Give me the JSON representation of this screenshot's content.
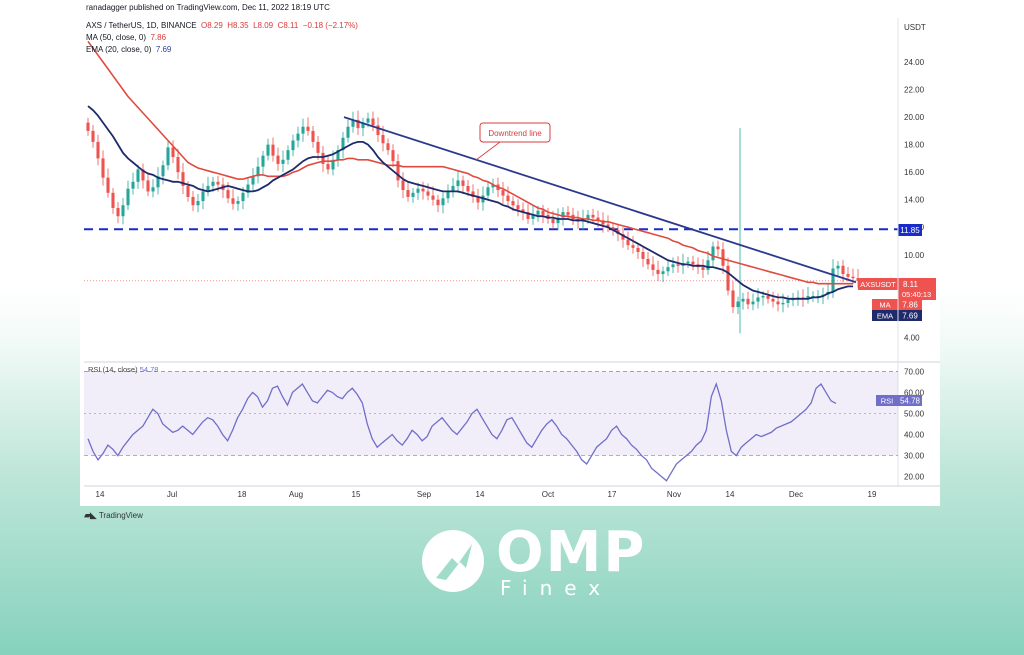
{
  "header": {
    "published_by": "ranadagger published on TradingView.com, Dec 11, 2022 18:19 UTC",
    "symbol": "AXS / TetherUS, 1D, BINANCE",
    "ohlc_o": "O8.29",
    "ohlc_h": "H8.35",
    "ohlc_l": "L8.09",
    "ohlc_c": "C8.11",
    "ohlc_change": "−0.18 (−2.17%)",
    "ma_label": "MA (50, close, 0)",
    "ma_value": "7.86",
    "ema_label": "EMA (20, close, 0)",
    "ema_value": "7.69",
    "rsi_label": "RSI (14, close)",
    "rsi_value": "54.78"
  },
  "annotation": {
    "downtrend_label": "Downtrend line"
  },
  "tags": {
    "support_level": "11.85",
    "symbol_tag": "AXSUSDT",
    "price": "8.11",
    "countdown": "05:40:13",
    "ma_tag": "MA",
    "ma_value": "7.86",
    "ema_tag": "EMA",
    "ema_value": "7.69",
    "rsi_tag": "RSI",
    "rsi_value": "54.78"
  },
  "footer": {
    "tradingview": "TradingView"
  },
  "watermark": {
    "omp": "OMP",
    "finex": "Finex"
  },
  "colors": {
    "up": "#26a69a",
    "down": "#ef5350",
    "ma": "#e04a3f",
    "ema": "#1f2a6b",
    "trend": "#2b3a8c",
    "support": "#1a2cc7",
    "rsi": "#6f6fc9"
  },
  "chart_data": [
    {
      "type": "candlestick",
      "title": "AXS / TetherUS, 1D, BINANCE",
      "y_axis_label": "USDT",
      "y_ticks": [
        "24.00",
        "22.00",
        "20.00",
        "18.00",
        "16.00",
        "14.00",
        "12.00",
        "10.00",
        "8.00",
        "6.00",
        "4.00"
      ],
      "x_ticks": [
        "14",
        "Jul",
        "18",
        "Aug",
        "15",
        "Sep",
        "14",
        "Oct",
        "17",
        "Nov",
        "14",
        "Dec",
        "19"
      ],
      "close": [
        19.0,
        18.2,
        17.0,
        15.6,
        14.5,
        13.4,
        12.8,
        13.6,
        14.8,
        15.3,
        16.2,
        15.4,
        14.6,
        14.9,
        15.7,
        16.5,
        17.8,
        17.1,
        16.0,
        15.0,
        14.2,
        13.6,
        13.9,
        14.6,
        15.0,
        15.3,
        15.1,
        14.7,
        14.1,
        13.7,
        13.9,
        14.5,
        15.1,
        15.7,
        16.4,
        17.2,
        18.0,
        17.2,
        16.6,
        16.9,
        17.6,
        18.3,
        18.8,
        19.3,
        19.0,
        18.2,
        17.4,
        16.6,
        16.2,
        16.9,
        17.6,
        18.5,
        19.3,
        19.8,
        19.2,
        19.6,
        19.9,
        19.4,
        18.7,
        18.1,
        17.6,
        16.8,
        15.4,
        14.7,
        14.2,
        14.5,
        14.8,
        14.6,
        14.3,
        14.0,
        13.6,
        14.1,
        14.6,
        15.0,
        15.4,
        15.0,
        14.6,
        14.2,
        13.8,
        14.3,
        14.9,
        15.1,
        14.7,
        14.3,
        13.9,
        13.6,
        13.3,
        13.1,
        12.6,
        12.9,
        13.2,
        12.9,
        12.6,
        12.3,
        12.7,
        13.1,
        12.9,
        12.6,
        12.4,
        12.6,
        12.9,
        12.7,
        12.5,
        12.2,
        12.0,
        11.8,
        11.5,
        11.1,
        10.7,
        10.5,
        10.2,
        9.7,
        9.3,
        8.9,
        8.6,
        8.8,
        9.1,
        9.3,
        9.2,
        9.4,
        9.5,
        9.3,
        9.1,
        8.9,
        9.6,
        10.6,
        10.4,
        9.2,
        7.4,
        6.2,
        6.6,
        6.8,
        6.4,
        6.6,
        6.9,
        7.0,
        6.8,
        6.6,
        6.4,
        6.5,
        6.7,
        6.8,
        6.9,
        6.8,
        7.0,
        7.0,
        7.0,
        7.1,
        7.3,
        9.0,
        9.2,
        8.6,
        8.4,
        8.3,
        8.1
      ],
      "ma_50": [
        25.5,
        25.0,
        24.5,
        24.0,
        23.5,
        23.0,
        22.5,
        22.0,
        21.5,
        21.1,
        20.7,
        20.3,
        19.9,
        19.5,
        19.1,
        18.7,
        18.3,
        17.9,
        17.5,
        17.1,
        16.7,
        16.5,
        16.3,
        16.2,
        16.1,
        16.0,
        15.9,
        15.8,
        15.7,
        15.6,
        15.5,
        15.5,
        15.6,
        15.7,
        15.8,
        15.8,
        15.7,
        15.7,
        15.7,
        15.7,
        15.8,
        16.0,
        16.1,
        16.3,
        16.5,
        16.6,
        16.7,
        16.8,
        16.8,
        16.8,
        16.9,
        16.9,
        17.0,
        17.0,
        16.9,
        16.9,
        16.9,
        16.8,
        16.7,
        16.6,
        16.5,
        16.5,
        16.5,
        16.4,
        16.4,
        16.4,
        16.4,
        16.4,
        16.4,
        16.4,
        16.4,
        16.4,
        16.3,
        16.2,
        16.1,
        16.0,
        15.9,
        15.7,
        15.6,
        15.4,
        15.3,
        15.1,
        14.9,
        14.8,
        14.6,
        14.4,
        14.2,
        14.0,
        13.8,
        13.6,
        13.4,
        13.3,
        13.1,
        13.0,
        12.9,
        12.8,
        12.8,
        12.7,
        12.7,
        12.6,
        12.6,
        12.5,
        12.5,
        12.4,
        12.4,
        12.3,
        12.2,
        12.1,
        12.0,
        11.9,
        11.8,
        11.7,
        11.6,
        11.5,
        11.4,
        11.3,
        11.2,
        11.0,
        10.9,
        10.7,
        10.6,
        10.5,
        10.3,
        10.2,
        10.1,
        9.9,
        9.8,
        9.7,
        9.6,
        9.5,
        9.4,
        9.3,
        9.2,
        9.1,
        9.0,
        8.9,
        8.8,
        8.7,
        8.6,
        8.5,
        8.4,
        8.3,
        8.2,
        8.1,
        8.0,
        8.0,
        7.9,
        7.9,
        7.9,
        7.9,
        7.9,
        7.9,
        7.9,
        7.9
      ],
      "ema_20": [
        20.8,
        20.5,
        20.1,
        19.6,
        19.1,
        18.6,
        18.0,
        17.4,
        17.0,
        16.7,
        16.4,
        16.1,
        15.9,
        15.8,
        15.6,
        15.5,
        15.4,
        15.3,
        15.3,
        15.2,
        15.1,
        15.0,
        14.8,
        14.7,
        14.6,
        14.7,
        14.8,
        14.9,
        15.0,
        14.9,
        14.8,
        14.7,
        14.6,
        14.6,
        14.7,
        14.9,
        15.1,
        15.4,
        15.6,
        15.8,
        16.0,
        16.2,
        16.5,
        16.8,
        17.0,
        17.1,
        17.1,
        17.1,
        17.2,
        17.3,
        17.5,
        17.7,
        17.9,
        18.1,
        18.2,
        18.2,
        18.0,
        17.6,
        17.1,
        16.7,
        16.4,
        16.1,
        15.8,
        15.5,
        15.3,
        15.2,
        15.1,
        15.0,
        14.9,
        14.8,
        14.7,
        14.6,
        14.6,
        14.6,
        14.6,
        14.5,
        14.4,
        14.3,
        14.2,
        14.1,
        14.0,
        13.9,
        13.8,
        13.6,
        13.5,
        13.3,
        13.2,
        13.1,
        13.0,
        12.9,
        12.8,
        12.8,
        12.7,
        12.7,
        12.6,
        12.6,
        12.6,
        12.5,
        12.5,
        12.5,
        12.4,
        12.3,
        12.2,
        12.1,
        12.0,
        11.8,
        11.6,
        11.4,
        11.2,
        11.0,
        10.8,
        10.6,
        10.4,
        10.2,
        10.0,
        9.8,
        9.6,
        9.5,
        9.4,
        9.3,
        9.3,
        9.2,
        9.2,
        9.2,
        9.1,
        9.1,
        9.0,
        8.9,
        8.7,
        8.4,
        8.1,
        7.8,
        7.6,
        7.4,
        7.3,
        7.2,
        7.1,
        7.0,
        6.9,
        6.9,
        6.8,
        6.8,
        6.8,
        6.8,
        6.8,
        6.9,
        6.9,
        7.0,
        7.2,
        7.3,
        7.5,
        7.6,
        7.7,
        7.7
      ],
      "ylim": [
        2.5,
        27.2
      ],
      "downtrend_line": {
        "from": 20.0,
        "to": 8.0
      },
      "support_line": 11.85,
      "last_price": 8.11
    },
    {
      "type": "line",
      "title": "RSI (14, close)",
      "y_ticks": [
        "70.00",
        "60.00",
        "50.00",
        "40.00",
        "30.00",
        "20.00"
      ],
      "values": [
        38,
        32,
        28,
        31,
        35,
        33,
        30,
        34,
        37,
        40,
        42,
        44,
        48,
        52,
        50,
        45,
        43,
        41,
        42,
        44,
        42,
        40,
        43,
        46,
        48,
        47,
        44,
        40,
        37,
        42,
        48,
        52,
        57,
        60,
        58,
        53,
        56,
        62,
        63,
        58,
        54,
        60,
        62,
        64,
        60,
        56,
        55,
        58,
        61,
        60,
        58,
        57,
        60,
        62,
        59,
        55,
        45,
        38,
        34,
        36,
        38,
        40,
        37,
        35,
        38,
        42,
        40,
        37,
        39,
        44,
        46,
        48,
        45,
        42,
        40,
        43,
        46,
        50,
        52,
        48,
        44,
        40,
        38,
        42,
        47,
        48,
        44,
        40,
        36,
        34,
        38,
        42,
        45,
        47,
        44,
        40,
        38,
        35,
        32,
        28,
        26,
        30,
        34,
        36,
        38,
        42,
        44,
        40,
        38,
        35,
        33,
        30,
        28,
        24,
        22,
        20,
        18,
        22,
        26,
        28,
        30,
        32,
        35,
        37,
        42,
        58,
        64,
        56,
        42,
        32,
        30,
        34,
        36,
        38,
        40,
        39,
        40,
        41,
        43,
        44,
        45,
        46,
        48,
        50,
        52,
        55,
        62,
        64,
        60,
        56,
        54.8
      ],
      "ylim": [
        16.5,
        73.5
      ],
      "bands": [
        70,
        50,
        30
      ]
    }
  ]
}
